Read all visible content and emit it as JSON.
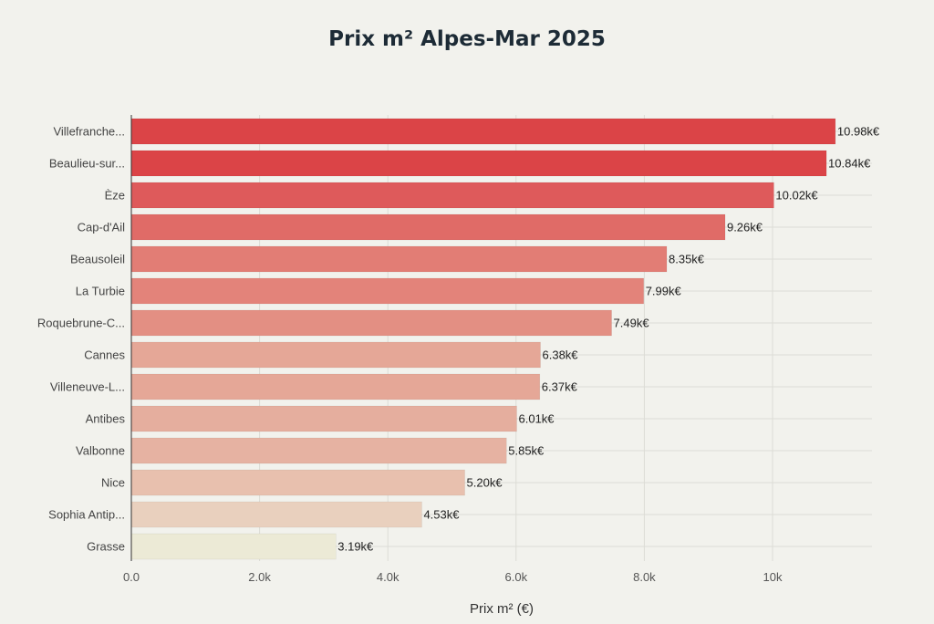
{
  "chart_data": {
    "type": "bar",
    "orientation": "horizontal",
    "title": "Prix m² Alpes-Mar 2025",
    "xlabel": "Prix m² (€)",
    "ylabel": "",
    "xlim": [
      0,
      11500
    ],
    "xticks": [
      0,
      2000,
      4000,
      6000,
      8000,
      10000
    ],
    "xtick_labels": [
      "0.0",
      "2.0k",
      "4.0k",
      "6.0k",
      "8.0k",
      "10k"
    ],
    "grid": true,
    "categories": [
      "Villefranche...",
      "Beaulieu-sur...",
      "Èze",
      "Cap-d'Ail",
      "Beausoleil",
      "La Turbie",
      "Roquebrune-C...",
      "Cannes",
      "Villeneuve-L...",
      "Antibes",
      "Valbonne",
      "Nice",
      "Sophia Antip...",
      "Grasse"
    ],
    "values": [
      10980,
      10840,
      10020,
      9260,
      8350,
      7990,
      7490,
      6380,
      6370,
      6010,
      5850,
      5200,
      4530,
      3190
    ],
    "value_labels": [
      "10.98k€",
      "10.84k€",
      "10.02k€",
      "9.26k€",
      "8.35k€",
      "7.99k€",
      "7.49k€",
      "6.38k€",
      "6.37k€",
      "6.01k€",
      "5.85k€",
      "5.20k€",
      "4.53k€",
      "3.19k€"
    ],
    "colors": [
      "#db4447",
      "#db4447",
      "#de5a5b",
      "#e06b67",
      "#e27d75",
      "#e3837a",
      "#e38f83",
      "#e5a797",
      "#e5a797",
      "#e5ae9e",
      "#e6b2a2",
      "#e8c0ae",
      "#e9d0be",
      "#ecead6"
    ]
  }
}
